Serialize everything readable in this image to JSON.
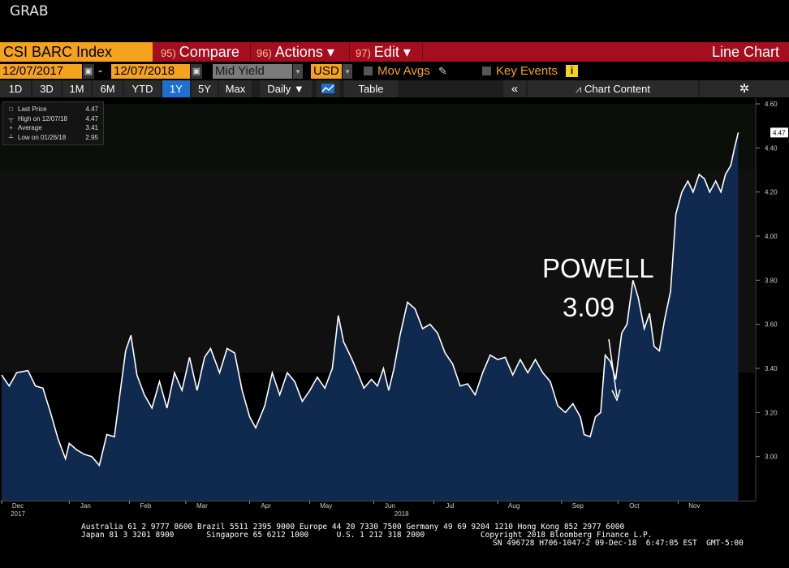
{
  "top_label": "GRAB",
  "toolbar": {
    "ticker": "CSI BARC Index",
    "compare": {
      "num": "95)",
      "label": "Compare"
    },
    "actions": {
      "num": "96)",
      "label": "Actions ▾"
    },
    "edit": {
      "num": "97)",
      "label": "Edit ▾"
    },
    "chart_type": "Line Chart"
  },
  "controls": {
    "start_date": "12/07/2017",
    "dash": "-",
    "end_date": "12/07/2018",
    "field": "Mid Yield",
    "currency": "USD",
    "mov_avgs": "Mov Avgs",
    "key_events": "Key Events",
    "key_events_badge": "i"
  },
  "ranges": [
    "1D",
    "3D",
    "1M",
    "6M",
    "YTD",
    "1Y",
    "5Y",
    "Max"
  ],
  "selected_range": "1Y",
  "frequency": "Daily ▼",
  "table_label": "Table",
  "chart_content_label": "Chart Content",
  "legend": [
    {
      "label": "Last Price",
      "value": "4.47",
      "icon": "□"
    },
    {
      "label": "High on 12/07/18",
      "value": "4.47",
      "icon": "┬"
    },
    {
      "label": "Average",
      "value": "3.41",
      "icon": "+"
    },
    {
      "label": "Low on 01/26/18",
      "value": "2.95",
      "icon": "┴"
    }
  ],
  "annotation": {
    "line1": "POWELL",
    "line2": "3.09"
  },
  "last_value_label": "4.47",
  "colors": {
    "line": "#ffffff",
    "fill": "#0f2a4e",
    "ticker_bg": "#f5a21f",
    "bar_bg": "#a50e1e",
    "accent": "#f5a21f"
  },
  "chart_data": {
    "type": "area",
    "ylim": [
      2.8,
      4.6
    ],
    "yticks": [
      "4.60",
      "4.40",
      "4.20",
      "4.00",
      "3.80",
      "3.60",
      "3.40",
      "3.20",
      "3.00"
    ],
    "x_labels": [
      {
        "label": "Dec",
        "sub": "2017",
        "t": 0.0
      },
      {
        "label": "Jan",
        "t": 0.09
      },
      {
        "label": "Feb",
        "t": 0.17
      },
      {
        "label": "Mar",
        "t": 0.245
      },
      {
        "label": "Apr",
        "t": 0.33
      },
      {
        "label": "May",
        "t": 0.41
      },
      {
        "label": "Jun",
        "t": 0.495
      },
      {
        "label": "2018",
        "t": 0.532,
        "yearlabel": true
      },
      {
        "label": "Jul",
        "t": 0.575
      },
      {
        "label": "Aug",
        "t": 0.66
      },
      {
        "label": "Sep",
        "t": 0.745
      },
      {
        "label": "Oct",
        "t": 0.82
      },
      {
        "label": "Nov",
        "t": 0.9
      }
    ],
    "series": [
      {
        "values": [
          [
            0.0,
            3.37
          ],
          [
            0.01,
            3.32
          ],
          [
            0.02,
            3.38
          ],
          [
            0.035,
            3.39
          ],
          [
            0.045,
            3.32
          ],
          [
            0.055,
            3.31
          ],
          [
            0.065,
            3.2
          ],
          [
            0.075,
            3.08
          ],
          [
            0.085,
            2.99
          ],
          [
            0.09,
            3.06
          ],
          [
            0.1,
            3.03
          ],
          [
            0.11,
            3.01
          ],
          [
            0.12,
            3.0
          ],
          [
            0.13,
            2.96
          ],
          [
            0.14,
            3.1
          ],
          [
            0.15,
            3.09
          ],
          [
            0.158,
            3.3
          ],
          [
            0.165,
            3.48
          ],
          [
            0.172,
            3.55
          ],
          [
            0.18,
            3.37
          ],
          [
            0.19,
            3.28
          ],
          [
            0.2,
            3.22
          ],
          [
            0.21,
            3.34
          ],
          [
            0.22,
            3.22
          ],
          [
            0.23,
            3.38
          ],
          [
            0.24,
            3.3
          ],
          [
            0.25,
            3.45
          ],
          [
            0.26,
            3.3
          ],
          [
            0.27,
            3.45
          ],
          [
            0.278,
            3.49
          ],
          [
            0.29,
            3.38
          ],
          [
            0.3,
            3.49
          ],
          [
            0.31,
            3.47
          ],
          [
            0.32,
            3.3
          ],
          [
            0.33,
            3.18
          ],
          [
            0.338,
            3.13
          ],
          [
            0.35,
            3.23
          ],
          [
            0.36,
            3.38
          ],
          [
            0.37,
            3.28
          ],
          [
            0.38,
            3.38
          ],
          [
            0.39,
            3.34
          ],
          [
            0.4,
            3.25
          ],
          [
            0.41,
            3.3
          ],
          [
            0.42,
            3.36
          ],
          [
            0.43,
            3.31
          ],
          [
            0.44,
            3.4
          ],
          [
            0.448,
            3.64
          ],
          [
            0.455,
            3.52
          ],
          [
            0.465,
            3.45
          ],
          [
            0.475,
            3.37
          ],
          [
            0.482,
            3.31
          ],
          [
            0.492,
            3.35
          ],
          [
            0.5,
            3.32
          ],
          [
            0.508,
            3.4
          ],
          [
            0.515,
            3.3
          ],
          [
            0.522,
            3.4
          ],
          [
            0.53,
            3.55
          ],
          [
            0.54,
            3.7
          ],
          [
            0.55,
            3.67
          ],
          [
            0.56,
            3.58
          ],
          [
            0.57,
            3.6
          ],
          [
            0.58,
            3.56
          ],
          [
            0.59,
            3.47
          ],
          [
            0.6,
            3.42
          ],
          [
            0.61,
            3.32
          ],
          [
            0.62,
            3.33
          ],
          [
            0.63,
            3.28
          ],
          [
            0.64,
            3.38
          ],
          [
            0.65,
            3.46
          ],
          [
            0.66,
            3.44
          ],
          [
            0.67,
            3.45
          ],
          [
            0.68,
            3.37
          ],
          [
            0.69,
            3.44
          ],
          [
            0.7,
            3.38
          ],
          [
            0.71,
            3.44
          ],
          [
            0.72,
            3.38
          ],
          [
            0.73,
            3.34
          ],
          [
            0.74,
            3.23
          ],
          [
            0.75,
            3.2
          ],
          [
            0.76,
            3.24
          ],
          [
            0.77,
            3.18
          ],
          [
            0.775,
            3.1
          ],
          [
            0.783,
            3.09
          ],
          [
            0.79,
            3.18
          ],
          [
            0.797,
            3.2
          ],
          [
            0.803,
            3.46
          ],
          [
            0.81,
            3.43
          ],
          [
            0.817,
            3.35
          ],
          [
            0.825,
            3.56
          ],
          [
            0.832,
            3.6
          ],
          [
            0.84,
            3.8
          ],
          [
            0.847,
            3.72
          ],
          [
            0.855,
            3.58
          ],
          [
            0.862,
            3.65
          ],
          [
            0.868,
            3.5
          ],
          [
            0.875,
            3.48
          ],
          [
            0.882,
            3.62
          ],
          [
            0.89,
            3.75
          ],
          [
            0.897,
            4.1
          ],
          [
            0.905,
            4.2
          ],
          [
            0.913,
            4.25
          ],
          [
            0.92,
            4.2
          ],
          [
            0.928,
            4.28
          ],
          [
            0.935,
            4.26
          ],
          [
            0.942,
            4.2
          ],
          [
            0.95,
            4.25
          ],
          [
            0.957,
            4.2
          ],
          [
            0.963,
            4.28
          ],
          [
            0.97,
            4.32
          ],
          [
            0.975,
            4.4
          ],
          [
            0.98,
            4.47
          ]
        ]
      }
    ]
  },
  "footer": {
    "line1": "Australia 61 2 9777 8600 Brazil 5511 2395 9000 Europe 44 20 7330 7500 Germany 49 69 9204 1210 Hong Kong 852 2977 6000",
    "line2": "Japan 81 3 3201 8900       Singapore 65 6212 1000      U.S. 1 212 318 2000            Copyright 2018 Bloomberg Finance L.P.",
    "line3": "SN 496728 H706-1047-2 09-Dec-18  6:47:05 EST  GMT-5:00"
  }
}
